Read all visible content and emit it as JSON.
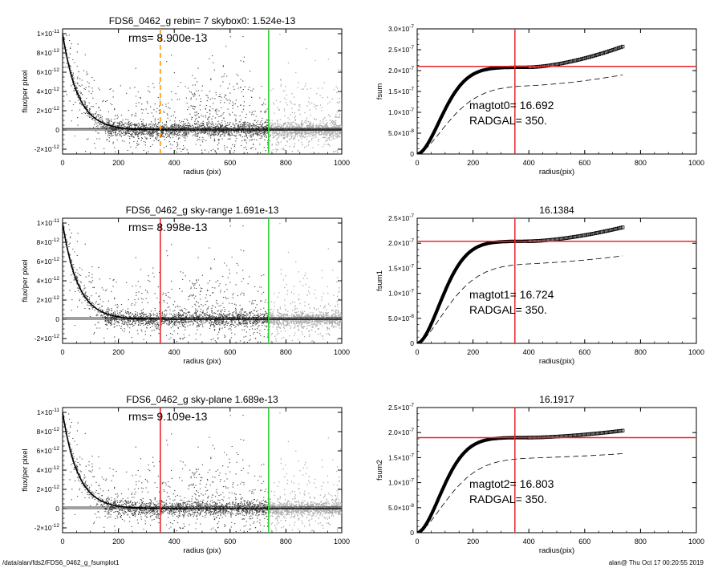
{
  "footer": {
    "left": "/data/alan/fds2/FDS6_0462_g_fsumplot1",
    "right": "alan@  Thu Oct 17 00:20:55 2019"
  },
  "colors": {
    "orange": "#ff9900",
    "red": "#e8262a",
    "green": "#33cc33",
    "scatter_dark": "#444444",
    "scatter_light": "#aaaaaa"
  },
  "chart_data": [
    {
      "type": "scatter",
      "title": "FDS6_0462_g rebin= 7    skybox0:  1.524e-13",
      "annotation": "rms= 8.900e-13",
      "xlabel": "radius (pix)",
      "ylabel": "flux/per pixel",
      "xlim": [
        0,
        1000
      ],
      "ylim": [
        -2.5e-12,
        1.05e-11
      ],
      "xticks": [
        0,
        200,
        400,
        600,
        800,
        1000
      ],
      "xtick_labels": [
        "0",
        "200",
        "400",
        "600",
        "800",
        "1000"
      ],
      "yticks": [
        -2e-12,
        0,
        2e-12,
        4e-12,
        6e-12,
        8e-12,
        1e-11
      ],
      "ytick_labels": [
        "-2×10⁻¹²",
        "0",
        "2×10⁻¹²",
        "4×10⁻¹²",
        "6×10⁻¹²",
        "8×10⁻¹²",
        "1×10⁻¹¹"
      ],
      "vlines": [
        {
          "x": 350,
          "color": "orange",
          "style": "dashed"
        },
        {
          "x": 738,
          "color": "green",
          "style": "solid"
        }
      ],
      "hlines": [
        0,
        1.524e-13
      ],
      "profile": {
        "peak": 1e-11,
        "scale_pix": 55
      },
      "outer_light": true
    },
    {
      "type": "line",
      "title": "",
      "xlabel": "radius(pix)",
      "ylabel": "fsum",
      "xlim": [
        0,
        1000
      ],
      "ylim": [
        0,
        3e-07
      ],
      "xticks": [
        0,
        200,
        400,
        600,
        800,
        1000
      ],
      "xtick_labels": [
        "0",
        "200",
        "400",
        "600",
        "800",
        "1000"
      ],
      "yticks": [
        0,
        5e-08,
        1e-07,
        1.5e-07,
        2e-07,
        2.5e-07,
        3e-07
      ],
      "ytick_labels": [
        "0",
        "5.0×10⁻⁸",
        "1.0×10⁻⁷",
        "1.5×10⁻⁷",
        "2.0×10⁻⁷",
        "2.5×10⁻⁷",
        "3.0×10⁻⁷"
      ],
      "annotations": [
        "magtot0=  16.692",
        "RADGAL=    350."
      ],
      "vline": 350,
      "hline": 2.1e-07,
      "curve": {
        "plateau": 2.08e-07,
        "end_value": 2.58e-07,
        "rmax": 738
      },
      "dashed": {
        "plateau": 1.65e-07,
        "end_value": 1.9e-07,
        "rmax": 738
      }
    },
    {
      "type": "scatter",
      "title": "FDS6_0462_g sky-range  1.691e-13",
      "annotation": "rms= 8.998e-13",
      "xlabel": "radius (pix)",
      "ylabel": "flux/per pixel",
      "xlim": [
        0,
        1000
      ],
      "ylim": [
        -2.5e-12,
        1.05e-11
      ],
      "xticks": [
        0,
        200,
        400,
        600,
        800,
        1000
      ],
      "xtick_labels": [
        "0",
        "200",
        "400",
        "600",
        "800",
        "1000"
      ],
      "yticks": [
        -2e-12,
        0,
        2e-12,
        4e-12,
        6e-12,
        8e-12,
        1e-11
      ],
      "ytick_labels": [
        "-2×10⁻¹²",
        "0",
        "2×10⁻¹²",
        "4×10⁻¹²",
        "6×10⁻¹²",
        "8×10⁻¹²",
        "1×10⁻¹¹"
      ],
      "vlines": [
        {
          "x": 350,
          "color": "red",
          "style": "solid"
        },
        {
          "x": 738,
          "color": "green",
          "style": "solid"
        }
      ],
      "hlines": [
        0,
        1.691e-13
      ],
      "profile": {
        "peak": 1e-11,
        "scale_pix": 55
      },
      "outer_light": true
    },
    {
      "type": "line",
      "title": "16.1384",
      "xlabel": "radius(pix)",
      "ylabel": "fsum1",
      "xlim": [
        0,
        1000
      ],
      "ylim": [
        0,
        2.5e-07
      ],
      "xticks": [
        0,
        200,
        400,
        600,
        800,
        1000
      ],
      "xtick_labels": [
        "0",
        "200",
        "400",
        "600",
        "800",
        "1000"
      ],
      "yticks": [
        0,
        5e-08,
        1e-07,
        1.5e-07,
        2e-07,
        2.5e-07
      ],
      "ytick_labels": [
        "0",
        "5.0×10⁻⁸",
        "1.0×10⁻⁷",
        "1.5×10⁻⁷",
        "2.0×10⁻⁷",
        "2.5×10⁻⁷"
      ],
      "annotations": [
        "magtot1=  16.724",
        "RADGAL=    350."
      ],
      "vline": 350,
      "hline": 2.04e-07,
      "curve": {
        "plateau": 2.04e-07,
        "end_value": 2.32e-07,
        "rmax": 738
      },
      "dashed": {
        "plateau": 1.6e-07,
        "end_value": 1.75e-07,
        "rmax": 738
      }
    },
    {
      "type": "scatter",
      "title": "FDS6_0462_g sky-plane  1.689e-13",
      "annotation": "rms= 9.109e-13",
      "xlabel": "radius (pix)",
      "ylabel": "flux/per pixel",
      "xlim": [
        0,
        1000
      ],
      "ylim": [
        -2.5e-12,
        1.05e-11
      ],
      "xticks": [
        0,
        200,
        400,
        600,
        800,
        1000
      ],
      "xtick_labels": [
        "0",
        "200",
        "400",
        "600",
        "800",
        "1000"
      ],
      "yticks": [
        -2e-12,
        0,
        2e-12,
        4e-12,
        6e-12,
        8e-12,
        1e-11
      ],
      "ytick_labels": [
        "-2×10⁻¹²",
        "0",
        "2×10⁻¹²",
        "4×10⁻¹²",
        "6×10⁻¹²",
        "8×10⁻¹²",
        "1×10⁻¹¹"
      ],
      "vlines": [
        {
          "x": 350,
          "color": "red",
          "style": "solid"
        },
        {
          "x": 738,
          "color": "green",
          "style": "solid"
        }
      ],
      "hlines": [
        0,
        1.689e-13
      ],
      "profile": {
        "peak": 1e-11,
        "scale_pix": 55
      },
      "outer_light": true
    },
    {
      "type": "line",
      "title": "16.1917",
      "xlabel": "radius(pix)",
      "ylabel": "fsum2",
      "xlim": [
        0,
        1000
      ],
      "ylim": [
        0,
        2.5e-07
      ],
      "xticks": [
        0,
        200,
        400,
        600,
        800,
        1000
      ],
      "xtick_labels": [
        "0",
        "200",
        "400",
        "600",
        "800",
        "1000"
      ],
      "yticks": [
        0,
        5e-08,
        1e-07,
        1.5e-07,
        2e-07,
        2.5e-07
      ],
      "ytick_labels": [
        "0",
        "5.0×10⁻⁸",
        "1.0×10⁻⁷",
        "1.5×10⁻⁷",
        "2.0×10⁻⁷",
        "2.5×10⁻⁷"
      ],
      "annotations": [
        "magtot2=  16.803",
        "RADGAL=    350."
      ],
      "vline": 350,
      "hline": 1.9e-07,
      "curve": {
        "plateau": 1.9e-07,
        "end_value": 2.04e-07,
        "rmax": 738
      },
      "dashed": {
        "plateau": 1.5e-07,
        "end_value": 1.58e-07,
        "rmax": 738
      }
    }
  ]
}
